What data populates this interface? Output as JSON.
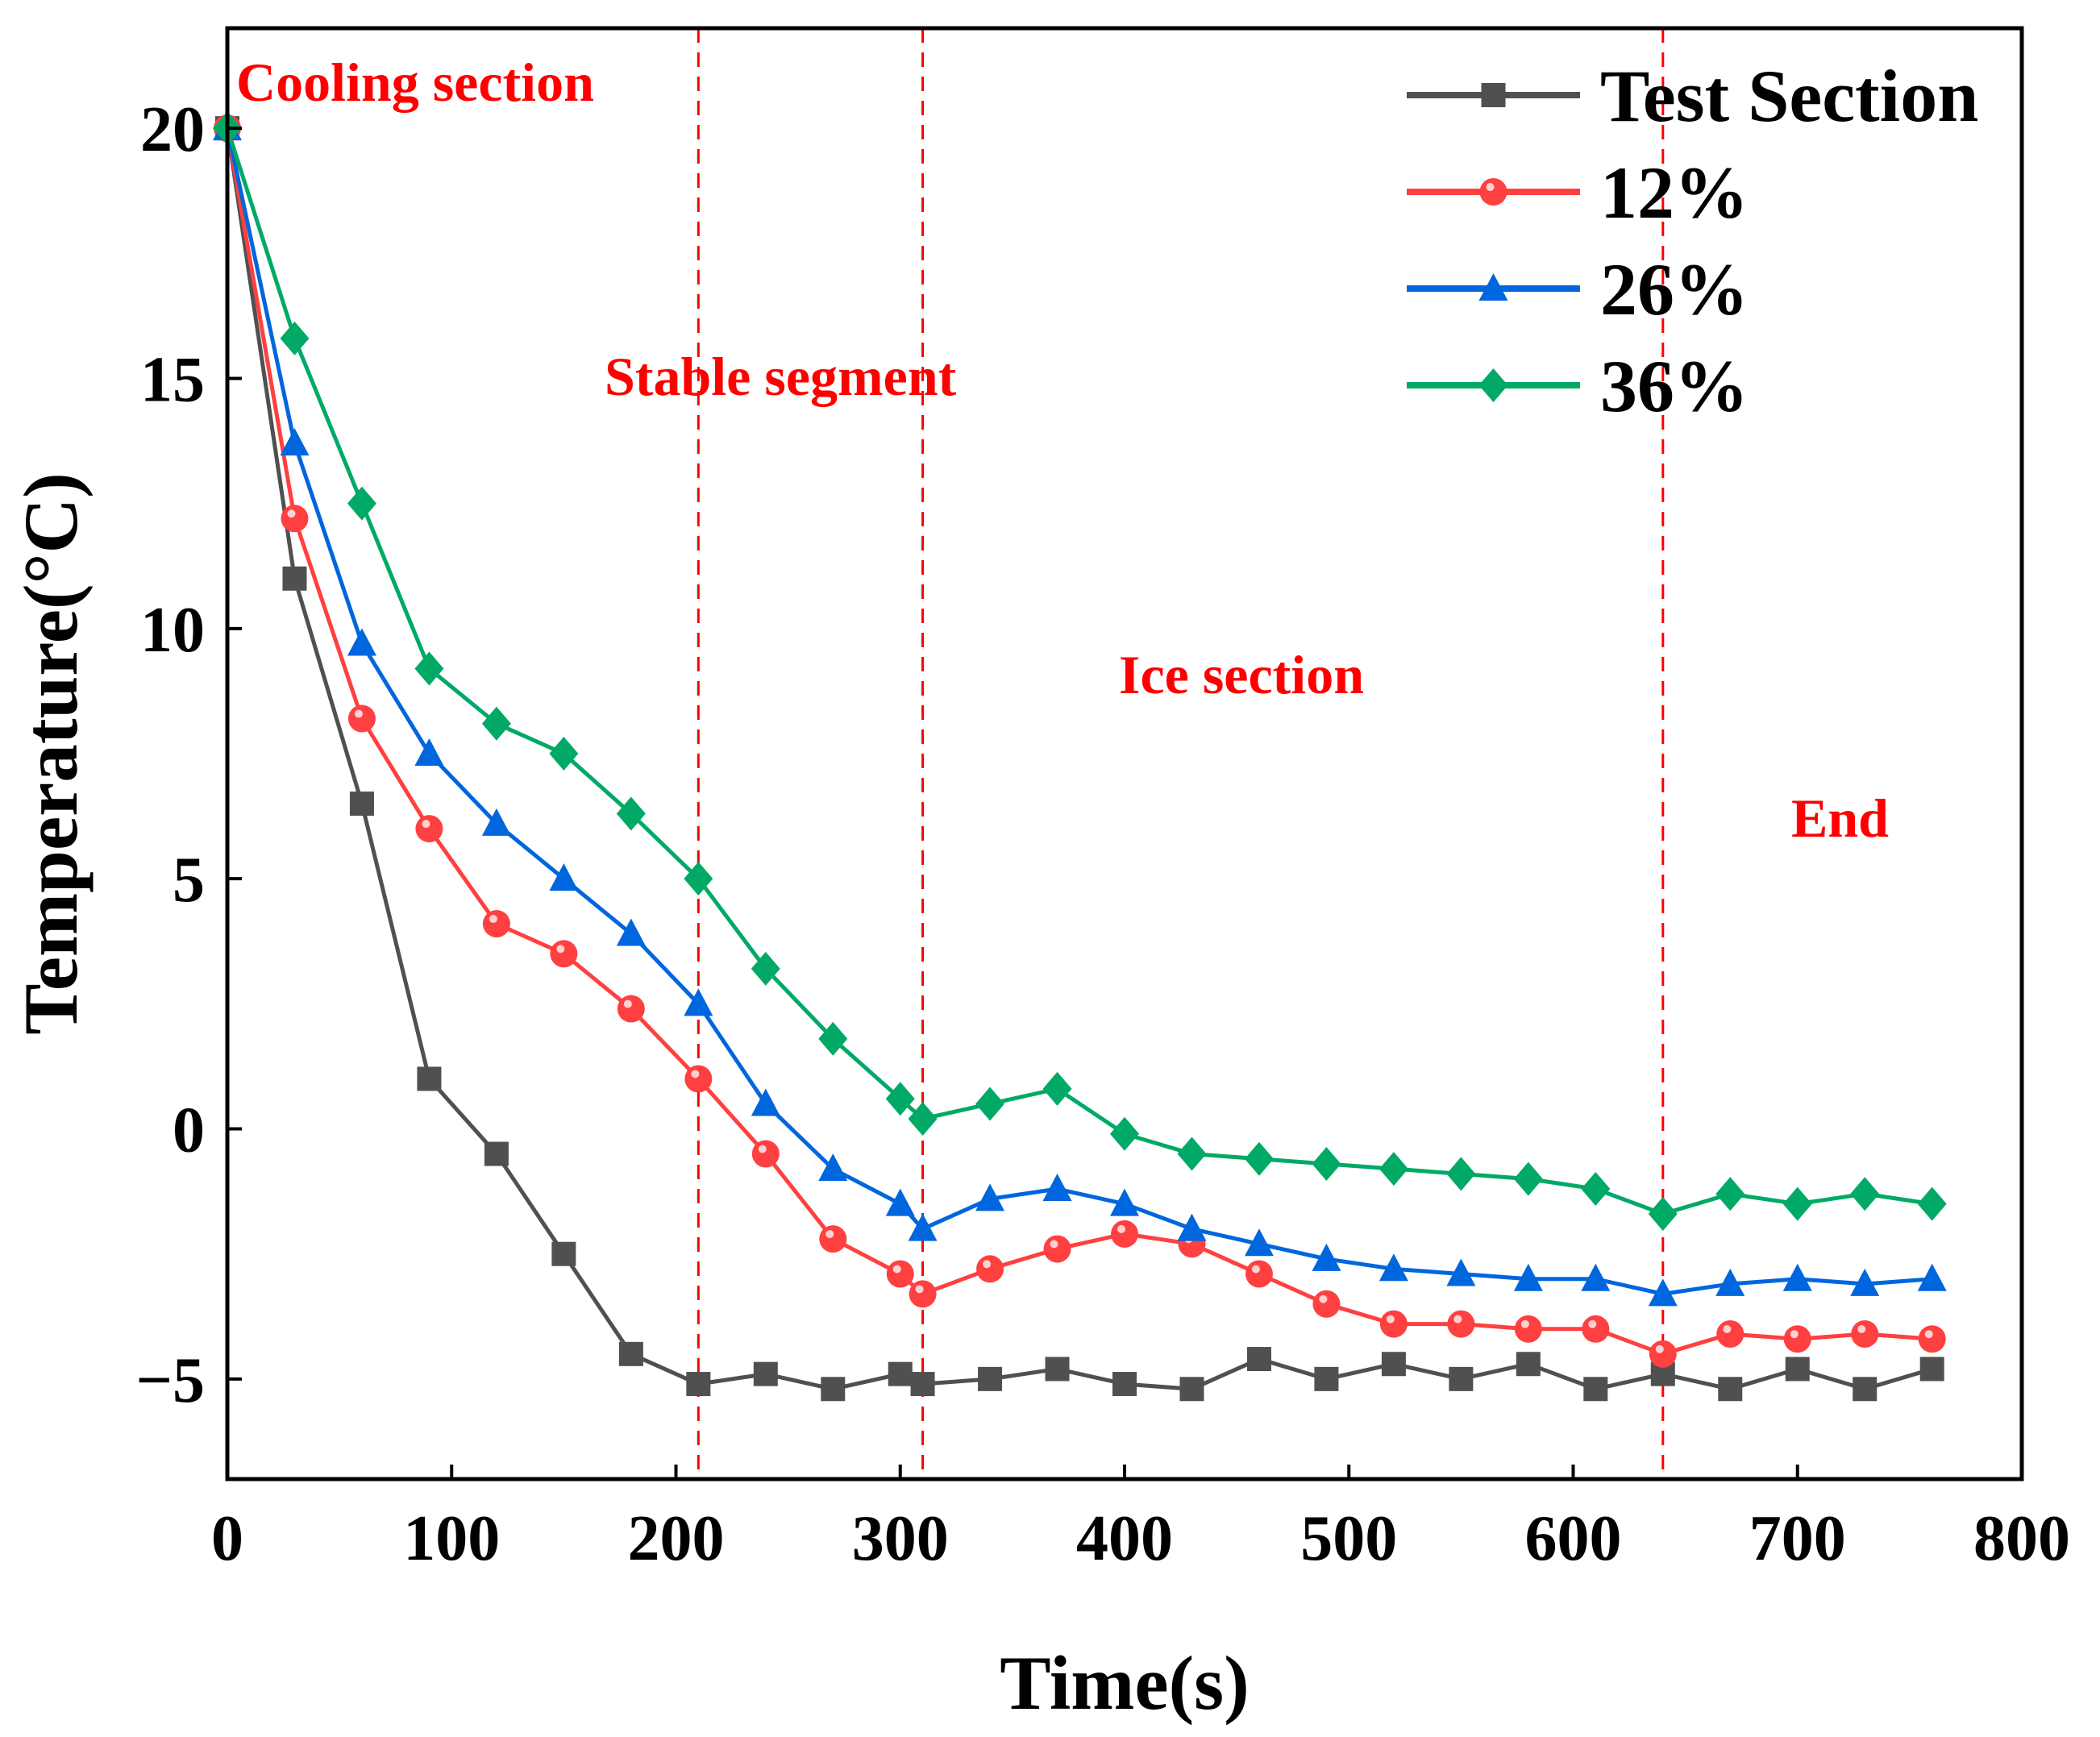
{
  "chart_data": {
    "type": "line",
    "title": "",
    "xlabel": "Time(s)",
    "ylabel": "Temperature(°C)",
    "xlim": [
      0,
      800
    ],
    "ylim": [
      -7,
      22
    ],
    "xticks": [
      0,
      100,
      200,
      300,
      400,
      500,
      600,
      700,
      800
    ],
    "yticks": [
      -5,
      0,
      5,
      10,
      15,
      20
    ],
    "ytick_labels": [
      "−5",
      "0",
      "5",
      "10",
      "15",
      "20"
    ],
    "grid": false,
    "legend_position": "top-right",
    "x": [
      0,
      30,
      60,
      90,
      120,
      150,
      180,
      210,
      240,
      270,
      300,
      310,
      340,
      370,
      400,
      430,
      460,
      490,
      520,
      550,
      580,
      610,
      640,
      670,
      700,
      730,
      760
    ],
    "series": [
      {
        "name": "Test Section",
        "color": "#505050",
        "marker": "square",
        "values": [
          20,
          11,
          6.5,
          1,
          -0.5,
          -2.5,
          -4.5,
          -5.1,
          -4.9,
          -5.2,
          -4.9,
          -5.1,
          -5.0,
          -4.8,
          -5.1,
          -5.2,
          -4.6,
          -5.0,
          -4.7,
          -5.0,
          -4.7,
          -5.2,
          -4.9,
          -5.2,
          -4.8,
          -5.2,
          -4.8
        ]
      },
      {
        "name": "12%",
        "color": "#ff4040",
        "marker": "circle",
        "values": [
          20,
          12.2,
          8.2,
          6.0,
          4.1,
          3.5,
          2.4,
          1.0,
          -0.5,
          -2.2,
          -2.9,
          -3.3,
          -2.8,
          -2.4,
          -2.1,
          -2.3,
          -2.9,
          -3.5,
          -3.9,
          -3.9,
          -4.0,
          -4.0,
          -4.5,
          -4.1,
          -4.2,
          -4.1,
          -4.2
        ]
      },
      {
        "name": "26%",
        "color": "#0066dd",
        "marker": "triangle",
        "values": [
          20,
          13.7,
          9.7,
          7.5,
          6.1,
          5.0,
          3.9,
          2.5,
          0.5,
          -0.8,
          -1.5,
          -2.0,
          -1.4,
          -1.2,
          -1.5,
          -2.0,
          -2.3,
          -2.6,
          -2.8,
          -2.9,
          -3.0,
          -3.0,
          -3.3,
          -3.1,
          -3.0,
          -3.1,
          -3.0
        ]
      },
      {
        "name": "36%",
        "color": "#00aa66",
        "marker": "diamond",
        "values": [
          20,
          15.8,
          12.5,
          9.2,
          8.1,
          7.5,
          6.3,
          5.0,
          3.2,
          1.8,
          0.6,
          0.2,
          0.5,
          0.8,
          -0.1,
          -0.5,
          -0.6,
          -0.7,
          -0.8,
          -0.9,
          -1.0,
          -1.2,
          -1.7,
          -1.3,
          -1.5,
          -1.3,
          -1.5
        ]
      }
    ],
    "reference_lines": [
      210,
      310,
      640
    ],
    "reference_color": "#ff0000",
    "annotations": [
      "Cooling section",
      "Stable segment",
      "Ice section",
      "End"
    ]
  }
}
